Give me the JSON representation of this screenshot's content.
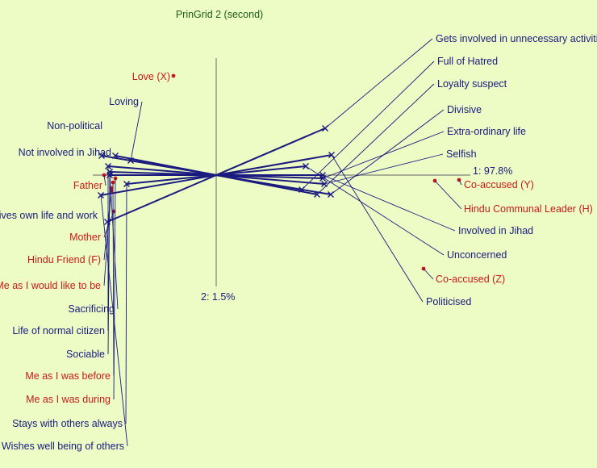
{
  "chart_data": {
    "type": "scatter",
    "title": "PrinGrid 2 (second)",
    "axis1_label": "1: 97.8%",
    "axis2_label": "2: 1.5%",
    "colors": {
      "background": "#ecfcc4",
      "construct": "#1a1a80",
      "element": "#c81a1a",
      "axis": "#7f7f7f",
      "title": "#1e5a1e"
    },
    "constructs": [
      {
        "left": "Non-political",
        "right": "Gets involved in unnecessary activities",
        "x": -135,
        "y": -58
      },
      {
        "left": "Loving",
        "right": "Full of Hatred",
        "x": -106,
        "y": 18
      },
      {
        "left": "Not involved in Jihad",
        "right": "Loyalty suspect",
        "x": -125,
        "y": 24
      },
      {
        "left": "Lives own life and work",
        "right": "Divisive",
        "x": -142,
        "y": 24
      },
      {
        "left": "Sacrificing",
        "right": "Extra-ordinary life",
        "x": -132,
        "y": 4
      },
      {
        "left": "Life of normal citizen",
        "right": "Selfish",
        "x": -134,
        "y": 11
      },
      {
        "left": "Sociable",
        "right": "Involved in Jihad",
        "x": -132,
        "y": 0
      },
      {
        "left": "Stays with others always",
        "right": "Unconcerned",
        "x": -111,
        "y": -11
      },
      {
        "left": "Wishes well being of others",
        "right": "Politicised",
        "x": -143,
        "y": -25
      }
    ],
    "elements": [
      {
        "name": "Love (X)",
        "x": -53,
        "y": 123
      },
      {
        "name": "Father",
        "x": -139,
        "y": 0
      },
      {
        "name": "Mother",
        "x": -127,
        "y": -45
      },
      {
        "name": "Hindu Friend (F)",
        "x": -130,
        "y": -20
      },
      {
        "name": "Me as I would like to be",
        "x": -130,
        "y": -16
      },
      {
        "name": "Me as I was before",
        "x": -128,
        "y": -9
      },
      {
        "name": "Me as I was during",
        "x": -125,
        "y": -4
      },
      {
        "name": "Co-accused (Y)",
        "x": 301,
        "y": -6
      },
      {
        "name": "Hindu Communal Leader (H)",
        "x": 271,
        "y": -7
      },
      {
        "name": "Co-accused (Z)",
        "x": 257,
        "y": -116
      }
    ]
  }
}
